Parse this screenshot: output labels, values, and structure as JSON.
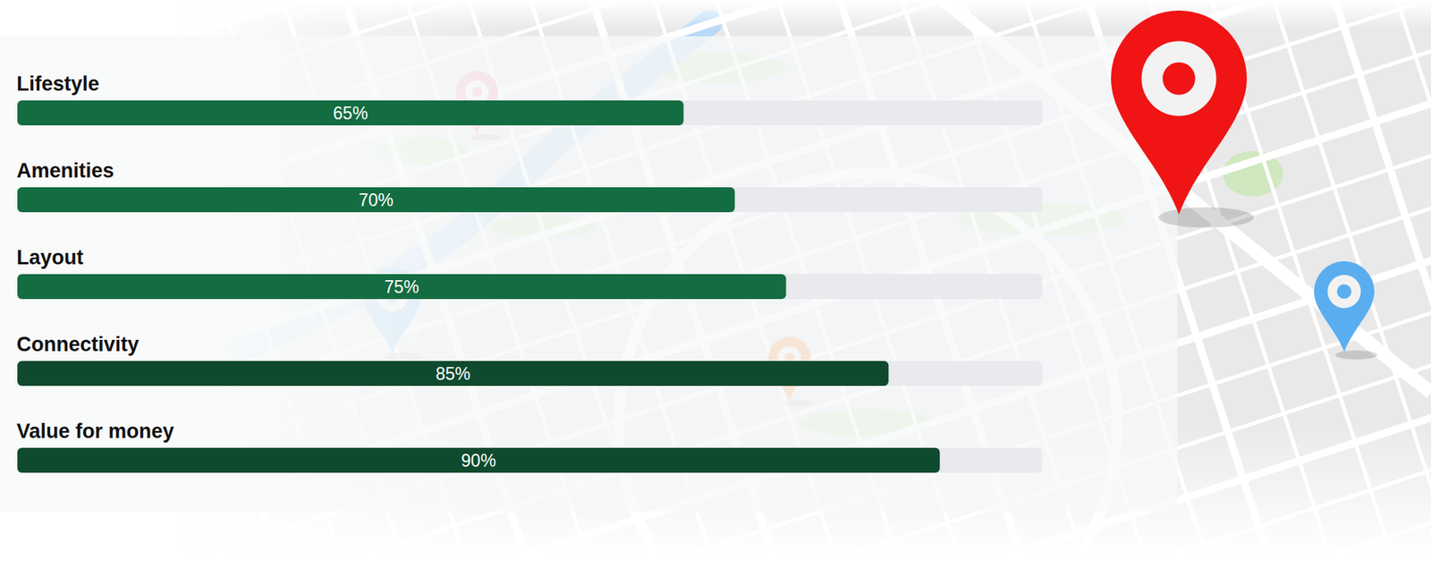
{
  "chart_data": {
    "type": "bar",
    "orientation": "horizontal",
    "categories": [
      "Lifestyle",
      "Amenities",
      "Layout",
      "Connectivity",
      "Value for money"
    ],
    "values": [
      65,
      70,
      75,
      85,
      90
    ],
    "value_labels": [
      "65%",
      "70%",
      "75%",
      "85%",
      "90%"
    ],
    "data_labels": true,
    "colors": [
      "#146c41",
      "#146c41",
      "#146c41",
      "#0f4a2e",
      "#0f4a2e"
    ],
    "xlim": [
      0,
      100
    ],
    "tick_labels": false
  }
}
